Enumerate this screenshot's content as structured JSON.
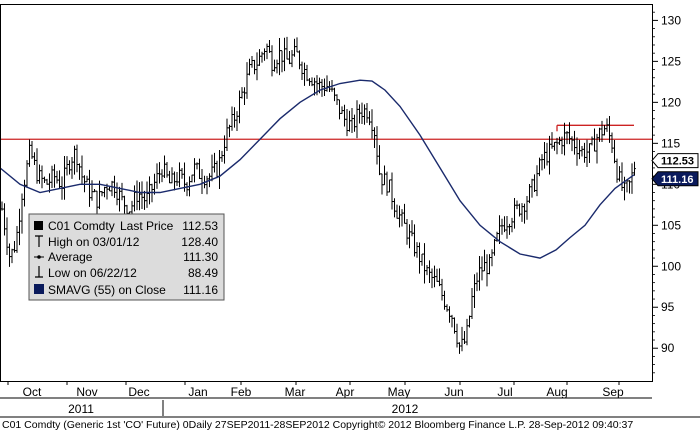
{
  "chart_data": {
    "type": "ohlc",
    "title": "",
    "xlabel": "",
    "ylabel": "",
    "ylim": [
      86,
      132
    ],
    "y_ticks": [
      90,
      95,
      100,
      105,
      110,
      115,
      120,
      125,
      130
    ],
    "grid": false,
    "month_labels": [
      "Oct",
      "Nov",
      "Dec",
      "Jan",
      "Feb",
      "Mar",
      "Apr",
      "May",
      "Jun",
      "Jul",
      "Aug",
      "Sep"
    ],
    "year_labels": [
      "2011",
      "2012"
    ],
    "monthly_close_approx": [
      {
        "month": "Oct",
        "value": 110
      },
      {
        "month": "Nov",
        "value": 111
      },
      {
        "month": "Dec",
        "value": 108
      },
      {
        "month": "Jan",
        "value": 110
      },
      {
        "month": "Feb",
        "value": 122
      },
      {
        "month": "Mar",
        "value": 124
      },
      {
        "month": "Apr",
        "value": 119
      },
      {
        "month": "May",
        "value": 105
      },
      {
        "month": "Jun",
        "value": 93
      },
      {
        "month": "Jul",
        "value": 104
      },
      {
        "month": "Aug",
        "value": 114
      },
      {
        "month": "Sep",
        "value": 111
      }
    ],
    "series": [
      {
        "name": "C01 Comdty",
        "kind": "ohlc",
        "color": "#000000",
        "last_value": 112.53
      },
      {
        "name": "SMAVG (55) on Close",
        "kind": "line",
        "color": "#1a2a6c",
        "last_value": 111.16
      }
    ],
    "reference_line": {
      "value": 115.5,
      "color": "#cc2222"
    },
    "resistance_line": {
      "value": 117.2,
      "color": "#cc2222"
    },
    "badges": [
      {
        "label": "112.53",
        "value": 112.53,
        "bg": "#ffffff",
        "fg": "#000000"
      },
      {
        "label": "111.16",
        "value": 111.16,
        "bg": "#0a1a5c",
        "fg": "#ffffff"
      }
    ]
  },
  "legend": {
    "items": [
      {
        "marker": "square",
        "label": "C01 Comdty",
        "detail": "Last Price",
        "value": "112.53"
      },
      {
        "marker": "high",
        "label": "High on 03/01/12",
        "value": "128.40"
      },
      {
        "marker": "avg",
        "label": "Average",
        "value": "111.30"
      },
      {
        "marker": "low",
        "label": "Low on 06/22/12",
        "value": "88.49"
      },
      {
        "marker": "navy",
        "label": "SMAVG (55) on Close",
        "value": "111.16"
      }
    ]
  },
  "footer": "C01 Comdty (Generic 1st 'CO' Future) 0Daily 27SEP2011-28SEP2012 Copyright© 2012 Bloomberg Finance L.P. 28-Sep-2012 09:40:37"
}
